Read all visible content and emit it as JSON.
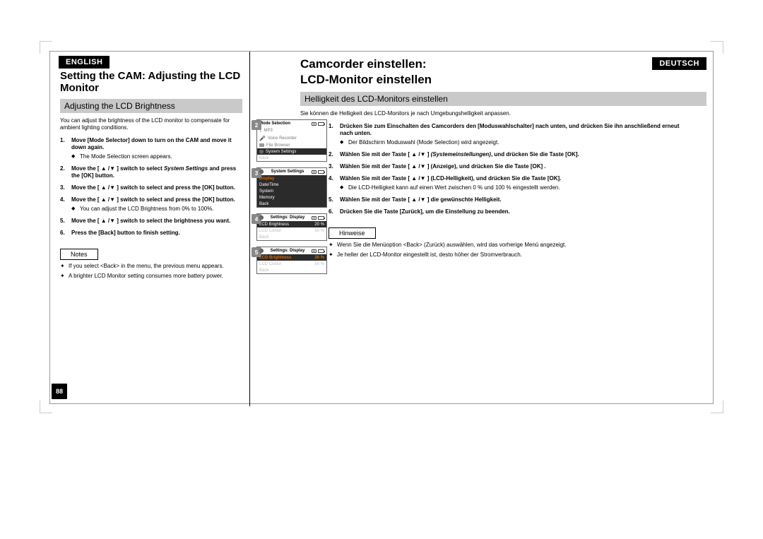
{
  "page_number": "88",
  "left": {
    "lang_tab": "ENGLISH",
    "headline": "Setting the CAM: Adjusting the LCD Monitor",
    "section": "Adjusting the LCD Brightness",
    "intro": "You can adjust the brightness of the LCD monitor to compensate for ambient lighting conditions.",
    "steps": [
      {
        "bold": "Move [Mode Selector] down to turn on the CAM and move it down again.",
        "sub": "The Mode Selection screen appears."
      },
      {
        "pre": "Move the [ ▲ /▼ ] switch to select ",
        "it": "System Settings",
        "post": " and press the [OK] button."
      },
      {
        "bold": "Move the [ ▲ /▼ ] switch to select <Display> and press the [OK] button."
      },
      {
        "bold": "Move the [ ▲ /▼ ] switch to select <LCD Brightness> and press the [OK] button.",
        "sub": "You can adjust the LCD Brightness from 0% to 100%."
      },
      {
        "bold": "Move the [ ▲ /▼ ] switch to select the brightness you want."
      },
      {
        "bold": "Press the [Back] button to finish setting."
      }
    ],
    "notes_label": "Notes",
    "notes": [
      "If you select <Back> in the menu, the previous menu appears.",
      "A brighter LCD Monitor setting consumes more battery power."
    ]
  },
  "right": {
    "lang_tab": "DEUTSCH",
    "headline_l1": "Camcorder einstellen:",
    "headline_l2": "LCD-Monitor einstellen",
    "section": "Helligkeit des LCD-Monitors einstellen",
    "intro": "Sie können die Helligkeit des LCD-Monitors je nach Umgebungshelligkeit anpassen.",
    "steps": [
      {
        "bold": "Drücken Sie zum Einschalten des Camcorders den [Moduswahlschalter] nach unten, und drücken Sie ihn anschließend erneut nach unten.",
        "sub": "Der Bildschirm Moduswahl (Mode Selection) wird angezeigt."
      },
      {
        "pre": "Wählen Sie mit der Taste [ ▲ /▼ ] ",
        "it": "<System Settings> (Systemeinstellungen)",
        "post": ", und drücken Sie die Taste [OK]."
      },
      {
        "bold": "Wählen Sie mit der Taste [ ▲ /▼ ] <Display> (Anzeige), und drücken Sie die Taste [OK] ."
      },
      {
        "bold": "Wählen Sie mit der Taste [ ▲ /▼ ] <LCD Brightness> (LCD-Helligkeit), und drücken Sie die Taste [OK].",
        "sub": "Die LCD-Helligkeit kann auf einen Wert zwischen 0 % und 100 % eingestellt werden."
      },
      {
        "bold": "Wählen Sie mit der Taste [ ▲ /▼ ] die gewünschte Helligkeit."
      },
      {
        "bold": "Drücken Sie die Taste [Zurück], um die Einstellung zu beenden."
      }
    ],
    "notes_label": "Hinweise",
    "notes": [
      "Wenn Sie die Menüoption <Back> (Zurück) auswählen, wird das vorherige Menü angezeigt.",
      "Je heller der LCD-Monitor eingestellt ist, desto höher der Stromverbrauch."
    ]
  },
  "screens": {
    "s2": {
      "badge": "2",
      "title": "Mode Selection",
      "rows": [
        {
          "icon": "note",
          "label": "MP3"
        },
        {
          "icon": "mic",
          "label": "Voice Recorder"
        },
        {
          "icon": "folder",
          "label": "File Browser"
        },
        {
          "icon": "tool",
          "label": "System Settings",
          "sel": true
        },
        {
          "label": "Back",
          "dim": true
        }
      ]
    },
    "s3": {
      "badge": "3",
      "title": "System Settings",
      "title_icon": "tool",
      "rows": [
        {
          "label": "Display",
          "orange": true,
          "sel": true
        },
        {
          "label": "Date/Time",
          "sel": true
        },
        {
          "label": "System",
          "sel": true
        },
        {
          "label": "Memory",
          "sel": true
        },
        {
          "label": "Back",
          "sel": true
        }
      ]
    },
    "s4": {
      "badge": "4",
      "title": "Settings: Display",
      "title_icon": "tool",
      "rows": [
        {
          "label": "LCD Brightness",
          "val": "20 %",
          "sel": true
        },
        {
          "label": "LCD Colour",
          "val": "50 %",
          "dim": true
        },
        {
          "label": "Back",
          "dim": true
        }
      ]
    },
    "s5": {
      "badge": "5",
      "title": "Settings: Display",
      "title_icon": "tool",
      "rows": [
        {
          "label": "LCD Brightness",
          "val": "30 %",
          "sel": true,
          "orange": true
        },
        {
          "label": "LCD Colour",
          "val": "50 %",
          "dim": true
        },
        {
          "label": "Back",
          "dim": true
        }
      ]
    }
  }
}
